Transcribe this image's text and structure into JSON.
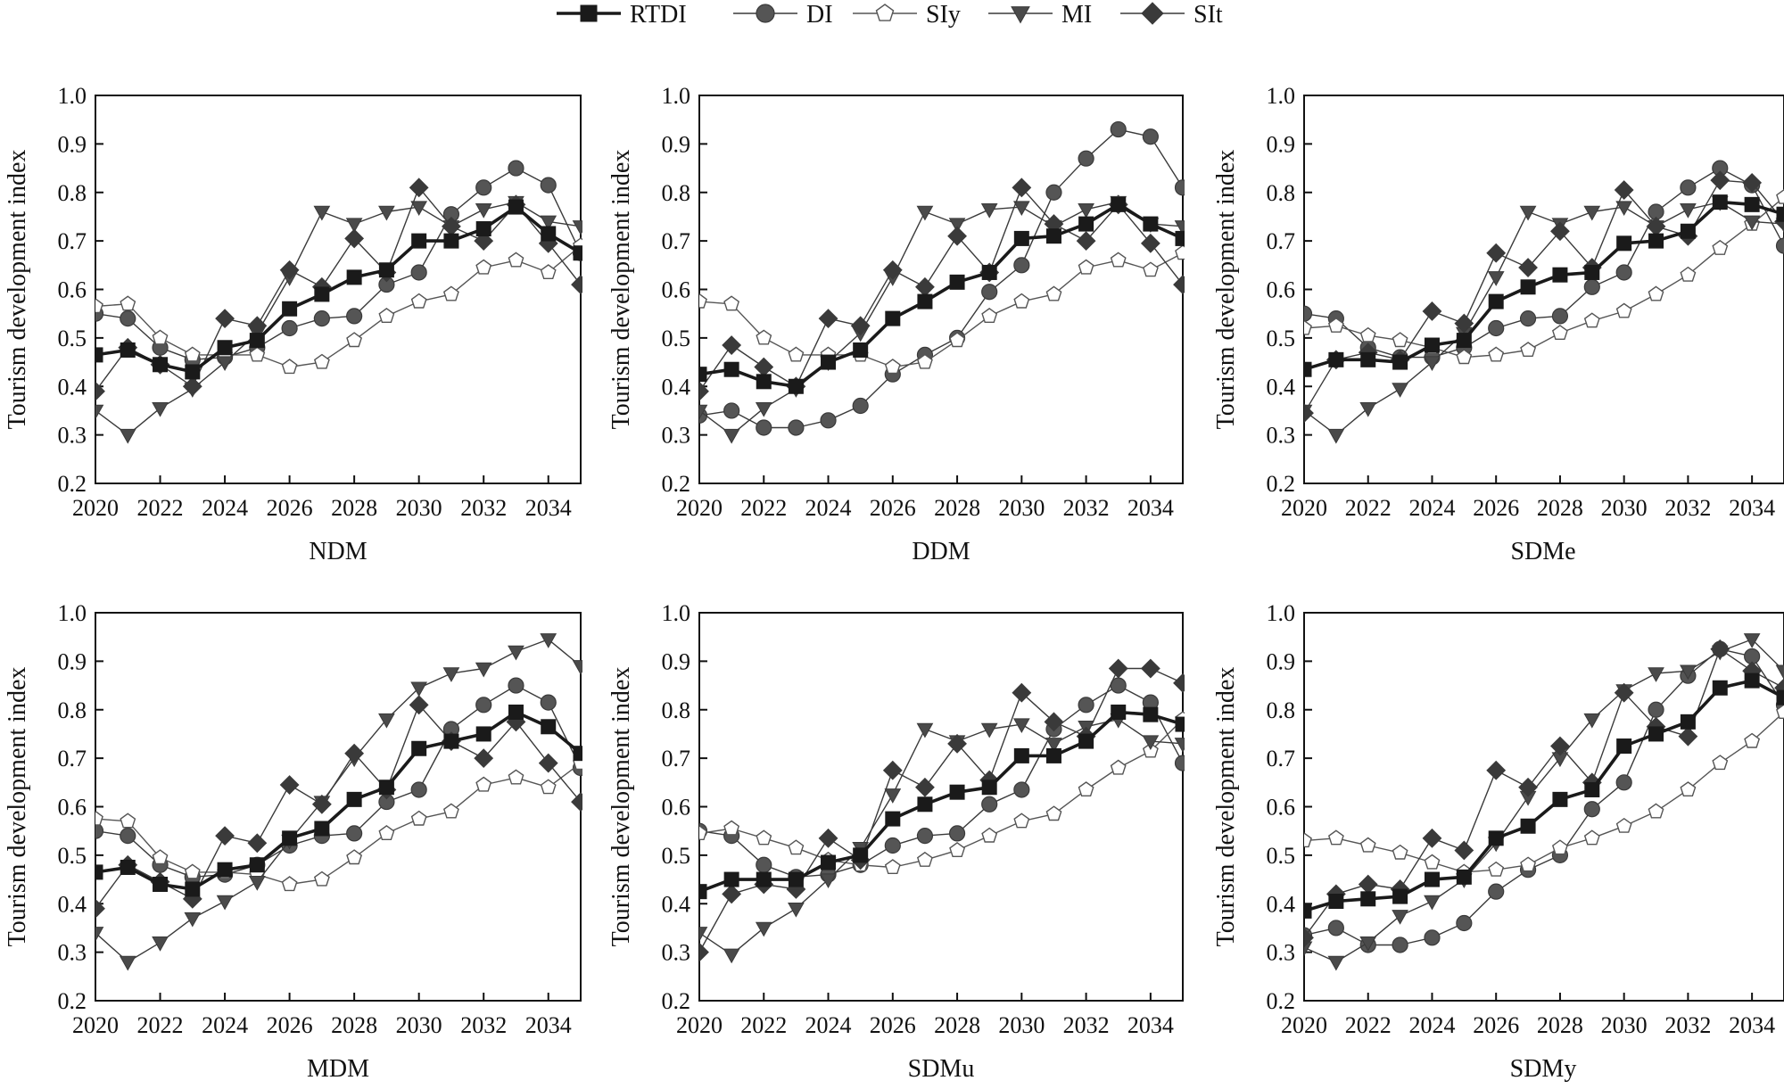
{
  "legend": [
    {
      "key": "RTDI",
      "label": "RTDI",
      "marker": "square",
      "fill": "#1a1a1a",
      "stroke": "#1a1a1a",
      "width": 3.6
    },
    {
      "key": "DI",
      "label": "DI",
      "marker": "circle",
      "fill": "#555555",
      "stroke": "#3a3a3a",
      "width": 1.4
    },
    {
      "key": "SIy",
      "label": "SIy",
      "marker": "pentagon",
      "fill": "#ffffff",
      "stroke": "#555555",
      "width": 1.4
    },
    {
      "key": "MI",
      "label": "MI",
      "marker": "triangle-down",
      "fill": "#4a4a4a",
      "stroke": "#3a3a3a",
      "width": 1.4
    },
    {
      "key": "SIt",
      "label": "SIt",
      "marker": "diamond",
      "fill": "#3a3a3a",
      "stroke": "#3a3a3a",
      "width": 1.4
    }
  ],
  "chart_data": [
    {
      "type": "line",
      "title": "NDM",
      "ylabel": "Tourism development index",
      "ylim": [
        0.2,
        1.0
      ],
      "xlim": [
        2020,
        2035
      ],
      "x": [
        2020,
        2021,
        2022,
        2023,
        2024,
        2025,
        2026,
        2027,
        2028,
        2029,
        2030,
        2031,
        2032,
        2033,
        2034,
        2035
      ],
      "xticks": [
        "2020",
        "2022",
        "2024",
        "2026",
        "2028",
        "2030",
        "2032",
        "2034"
      ],
      "yticks": [
        "0.2",
        "0.3",
        "0.4",
        "0.5",
        "0.6",
        "0.7",
        "0.8",
        "0.9",
        "1.0"
      ],
      "series": [
        {
          "name": "RTDI",
          "values": [
            0.465,
            0.475,
            0.445,
            0.43,
            0.48,
            0.495,
            0.56,
            0.59,
            0.625,
            0.64,
            0.7,
            0.7,
            0.725,
            0.77,
            0.715,
            0.675
          ]
        },
        {
          "name": "DI",
          "values": [
            0.55,
            0.54,
            0.48,
            0.455,
            0.46,
            0.48,
            0.52,
            0.54,
            0.545,
            0.61,
            0.635,
            0.755,
            0.81,
            0.85,
            0.815,
            0.675
          ]
        },
        {
          "name": "SIy",
          "values": [
            0.565,
            0.57,
            0.5,
            0.465,
            0.465,
            0.465,
            0.44,
            0.45,
            0.495,
            0.545,
            0.575,
            0.59,
            0.645,
            0.66,
            0.635,
            0.69
          ]
        },
        {
          "name": "MI",
          "values": [
            0.35,
            0.3,
            0.355,
            0.395,
            0.45,
            0.51,
            0.625,
            0.76,
            0.735,
            0.76,
            0.77,
            0.73,
            0.765,
            0.78,
            0.74,
            0.73
          ]
        },
        {
          "name": "SIt",
          "values": [
            0.39,
            0.48,
            0.445,
            0.4,
            0.54,
            0.525,
            0.64,
            0.605,
            0.705,
            0.635,
            0.81,
            0.73,
            0.7,
            0.775,
            0.695,
            0.61
          ]
        }
      ]
    },
    {
      "type": "line",
      "title": "DDM",
      "ylabel": "Tourism development index",
      "ylim": [
        0.2,
        1.0
      ],
      "xlim": [
        2020,
        2035
      ],
      "x": [
        2020,
        2021,
        2022,
        2023,
        2024,
        2025,
        2026,
        2027,
        2028,
        2029,
        2030,
        2031,
        2032,
        2033,
        2034,
        2035
      ],
      "xticks": [
        "2020",
        "2022",
        "2024",
        "2026",
        "2028",
        "2030",
        "2032",
        "2034"
      ],
      "yticks": [
        "0.2",
        "0.3",
        "0.4",
        "0.5",
        "0.6",
        "0.7",
        "0.8",
        "0.9",
        "1.0"
      ],
      "series": [
        {
          "name": "RTDI",
          "values": [
            0.425,
            0.435,
            0.41,
            0.4,
            0.45,
            0.475,
            0.54,
            0.575,
            0.615,
            0.635,
            0.705,
            0.71,
            0.735,
            0.775,
            0.735,
            0.705
          ]
        },
        {
          "name": "DI",
          "values": [
            0.34,
            0.35,
            0.315,
            0.315,
            0.33,
            0.36,
            0.425,
            0.465,
            0.5,
            0.595,
            0.65,
            0.8,
            0.87,
            0.93,
            0.915,
            0.81
          ]
        },
        {
          "name": "SIy",
          "values": [
            0.575,
            0.57,
            0.5,
            0.465,
            0.465,
            0.465,
            0.44,
            0.45,
            0.495,
            0.545,
            0.575,
            0.59,
            0.645,
            0.66,
            0.64,
            0.675
          ]
        },
        {
          "name": "MI",
          "values": [
            0.35,
            0.3,
            0.355,
            0.395,
            0.45,
            0.51,
            0.625,
            0.76,
            0.735,
            0.765,
            0.77,
            0.73,
            0.765,
            0.78,
            0.735,
            0.73
          ]
        },
        {
          "name": "SIt",
          "values": [
            0.39,
            0.485,
            0.44,
            0.4,
            0.54,
            0.525,
            0.64,
            0.605,
            0.71,
            0.635,
            0.81,
            0.735,
            0.7,
            0.775,
            0.695,
            0.61
          ]
        }
      ]
    },
    {
      "type": "line",
      "title": "SDMe",
      "ylabel": "Tourism development index",
      "ylim": [
        0.2,
        1.0
      ],
      "xlim": [
        2020,
        2035
      ],
      "x": [
        2020,
        2021,
        2022,
        2023,
        2024,
        2025,
        2026,
        2027,
        2028,
        2029,
        2030,
        2031,
        2032,
        2033,
        2034,
        2035
      ],
      "xticks": [
        "2020",
        "2022",
        "2024",
        "2026",
        "2028",
        "2030",
        "2032",
        "2034"
      ],
      "yticks": [
        "0.2",
        "0.3",
        "0.4",
        "0.5",
        "0.6",
        "0.7",
        "0.8",
        "0.9",
        "1.0"
      ],
      "series": [
        {
          "name": "RTDI",
          "values": [
            0.435,
            0.455,
            0.455,
            0.45,
            0.485,
            0.495,
            0.575,
            0.605,
            0.63,
            0.635,
            0.695,
            0.7,
            0.72,
            0.78,
            0.775,
            0.755
          ]
        },
        {
          "name": "DI",
          "values": [
            0.55,
            0.54,
            0.48,
            0.46,
            0.46,
            0.48,
            0.52,
            0.54,
            0.545,
            0.605,
            0.635,
            0.76,
            0.81,
            0.85,
            0.815,
            0.69
          ]
        },
        {
          "name": "SIy",
          "values": [
            0.52,
            0.525,
            0.505,
            0.495,
            0.48,
            0.46,
            0.465,
            0.475,
            0.51,
            0.535,
            0.555,
            0.59,
            0.63,
            0.685,
            0.735,
            0.79
          ]
        },
        {
          "name": "MI",
          "values": [
            0.35,
            0.3,
            0.355,
            0.395,
            0.45,
            0.51,
            0.625,
            0.76,
            0.735,
            0.76,
            0.77,
            0.73,
            0.765,
            0.78,
            0.74,
            0.735
          ]
        },
        {
          "name": "SIt",
          "values": [
            0.345,
            0.455,
            0.47,
            0.455,
            0.555,
            0.53,
            0.675,
            0.645,
            0.72,
            0.645,
            0.805,
            0.73,
            0.71,
            0.825,
            0.82,
            0.74
          ]
        }
      ]
    },
    {
      "type": "line",
      "title": "MDM",
      "ylabel": "Tourism development index",
      "ylim": [
        0.2,
        1.0
      ],
      "xlim": [
        2020,
        2035
      ],
      "x": [
        2020,
        2021,
        2022,
        2023,
        2024,
        2025,
        2026,
        2027,
        2028,
        2029,
        2030,
        2031,
        2032,
        2033,
        2034,
        2035
      ],
      "xticks": [
        "2020",
        "2022",
        "2024",
        "2026",
        "2028",
        "2030",
        "2032",
        "2034"
      ],
      "yticks": [
        "0.2",
        "0.3",
        "0.4",
        "0.5",
        "0.6",
        "0.7",
        "0.8",
        "0.9",
        "1.0"
      ],
      "series": [
        {
          "name": "RTDI",
          "values": [
            0.465,
            0.475,
            0.44,
            0.43,
            0.47,
            0.48,
            0.535,
            0.555,
            0.615,
            0.64,
            0.72,
            0.735,
            0.75,
            0.795,
            0.765,
            0.71
          ]
        },
        {
          "name": "DI",
          "values": [
            0.55,
            0.54,
            0.48,
            0.455,
            0.46,
            0.48,
            0.52,
            0.54,
            0.545,
            0.61,
            0.635,
            0.76,
            0.81,
            0.85,
            0.815,
            0.68
          ]
        },
        {
          "name": "SIy",
          "values": [
            0.575,
            0.57,
            0.495,
            0.465,
            0.465,
            0.46,
            0.44,
            0.45,
            0.495,
            0.545,
            0.575,
            0.59,
            0.645,
            0.66,
            0.64,
            0.69
          ]
        },
        {
          "name": "MI",
          "values": [
            0.34,
            0.28,
            0.32,
            0.37,
            0.405,
            0.445,
            0.53,
            0.61,
            0.7,
            0.78,
            0.845,
            0.875,
            0.885,
            0.92,
            0.945,
            0.89
          ]
        },
        {
          "name": "SIt",
          "values": [
            0.39,
            0.48,
            0.445,
            0.41,
            0.54,
            0.525,
            0.645,
            0.605,
            0.71,
            0.635,
            0.81,
            0.735,
            0.7,
            0.775,
            0.69,
            0.61
          ]
        }
      ]
    },
    {
      "type": "line",
      "title": "SDMu",
      "ylabel": "Tourism development index",
      "ylim": [
        0.2,
        1.0
      ],
      "xlim": [
        2020,
        2035
      ],
      "x": [
        2020,
        2021,
        2022,
        2023,
        2024,
        2025,
        2026,
        2027,
        2028,
        2029,
        2030,
        2031,
        2032,
        2033,
        2034,
        2035
      ],
      "xticks": [
        "2020",
        "2022",
        "2024",
        "2026",
        "2028",
        "2030",
        "2032",
        "2034"
      ],
      "yticks": [
        "0.2",
        "0.3",
        "0.4",
        "0.5",
        "0.6",
        "0.7",
        "0.8",
        "0.9",
        "1.0"
      ],
      "series": [
        {
          "name": "RTDI",
          "values": [
            0.425,
            0.45,
            0.45,
            0.45,
            0.485,
            0.5,
            0.575,
            0.605,
            0.63,
            0.64,
            0.705,
            0.705,
            0.735,
            0.795,
            0.79,
            0.77
          ]
        },
        {
          "name": "DI",
          "values": [
            0.55,
            0.54,
            0.48,
            0.455,
            0.46,
            0.48,
            0.52,
            0.54,
            0.545,
            0.605,
            0.635,
            0.76,
            0.81,
            0.85,
            0.815,
            0.69
          ]
        },
        {
          "name": "SIy",
          "values": [
            0.545,
            0.555,
            0.535,
            0.515,
            0.49,
            0.48,
            0.475,
            0.49,
            0.51,
            0.54,
            0.57,
            0.585,
            0.635,
            0.68,
            0.715,
            0.78
          ]
        },
        {
          "name": "MI",
          "values": [
            0.34,
            0.295,
            0.35,
            0.39,
            0.45,
            0.515,
            0.625,
            0.76,
            0.735,
            0.76,
            0.77,
            0.73,
            0.765,
            0.78,
            0.735,
            0.73
          ]
        },
        {
          "name": "SIt",
          "values": [
            0.3,
            0.42,
            0.44,
            0.43,
            0.535,
            0.49,
            0.675,
            0.64,
            0.73,
            0.655,
            0.835,
            0.775,
            0.745,
            0.885,
            0.885,
            0.855
          ]
        }
      ]
    },
    {
      "type": "line",
      "title": "SDMy",
      "ylabel": "Tourism development index",
      "ylim": [
        0.2,
        1.0
      ],
      "xlim": [
        2020,
        2035
      ],
      "x": [
        2020,
        2021,
        2022,
        2023,
        2024,
        2025,
        2026,
        2027,
        2028,
        2029,
        2030,
        2031,
        2032,
        2033,
        2034,
        2035
      ],
      "xticks": [
        "2020",
        "2022",
        "2024",
        "2026",
        "2028",
        "2030",
        "2032",
        "2034"
      ],
      "yticks": [
        "0.2",
        "0.3",
        "0.4",
        "0.5",
        "0.6",
        "0.7",
        "0.8",
        "0.9",
        "1.0"
      ],
      "series": [
        {
          "name": "RTDI",
          "values": [
            0.385,
            0.405,
            0.41,
            0.415,
            0.45,
            0.455,
            0.535,
            0.56,
            0.615,
            0.635,
            0.725,
            0.75,
            0.775,
            0.845,
            0.86,
            0.825
          ]
        },
        {
          "name": "DI",
          "values": [
            0.335,
            0.35,
            0.315,
            0.315,
            0.33,
            0.36,
            0.425,
            0.47,
            0.5,
            0.595,
            0.65,
            0.8,
            0.87,
            0.925,
            0.91,
            0.81
          ]
        },
        {
          "name": "SIy",
          "values": [
            0.53,
            0.535,
            0.52,
            0.505,
            0.485,
            0.465,
            0.47,
            0.48,
            0.515,
            0.535,
            0.56,
            0.59,
            0.635,
            0.69,
            0.735,
            0.795
          ]
        },
        {
          "name": "MI",
          "values": [
            0.31,
            0.28,
            0.32,
            0.375,
            0.405,
            0.45,
            0.525,
            0.62,
            0.7,
            0.78,
            0.84,
            0.875,
            0.88,
            0.92,
            0.945,
            0.88
          ]
        },
        {
          "name": "SIt",
          "values": [
            0.33,
            0.42,
            0.44,
            0.43,
            0.535,
            0.51,
            0.675,
            0.64,
            0.725,
            0.65,
            0.835,
            0.765,
            0.745,
            0.925,
            0.88,
            0.845
          ]
        }
      ]
    }
  ]
}
